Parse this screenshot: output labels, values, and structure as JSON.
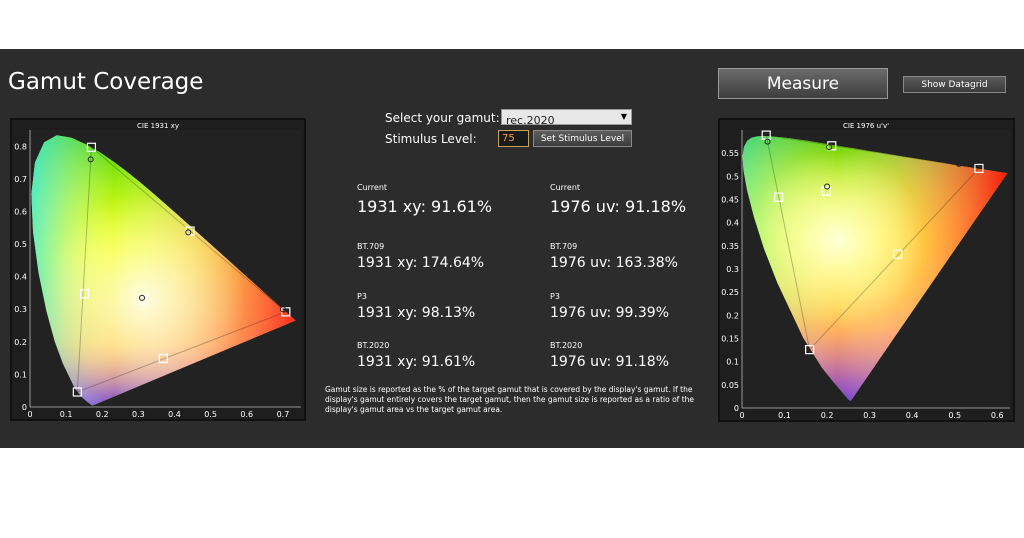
{
  "title": "Gamut Coverage",
  "buttons": {
    "measure": "Measure",
    "show_datagrid": "Show Datagrid",
    "set_stimulus": "Set Stimulus Level"
  },
  "controls": {
    "gamut_label": "Select your gamut:",
    "gamut_value": "rec.2020",
    "stimulus_label": "Stimulus Level:",
    "stimulus_value": "75"
  },
  "stats": [
    {
      "label": "Current",
      "xy": "1931 xy: 91.61%",
      "uv": "1976 uv: 91.18%"
    },
    {
      "label": "BT.709",
      "xy": "1931 xy: 174.64%",
      "uv": "1976 uv: 163.38%"
    },
    {
      "label": "P3",
      "xy": "1931 xy: 98.13%",
      "uv": "1976 uv: 99.39%"
    },
    {
      "label": "BT.2020",
      "xy": "1931 xy: 91.61%",
      "uv": "1976 uv: 91.18%"
    }
  ],
  "note": "Gamut size is reported as the % of the target gamut that is covered by the display's gamut. If the display's gamut entirely covers the target gamut, then the gamut size is reported as a ratio of the display's gamut area vs the target gamut area.",
  "chart_data": [
    {
      "type": "scatter",
      "title": "CIE 1931 xy",
      "xlim": [
        0,
        0.75
      ],
      "ylim": [
        0,
        0.85
      ],
      "x_ticks": [
        0,
        0.1,
        0.2,
        0.3,
        0.4,
        0.5,
        0.6,
        0.7
      ],
      "y_ticks": [
        0,
        0.1,
        0.2,
        0.3,
        0.4,
        0.5,
        0.6,
        0.7,
        0.8
      ],
      "target_points": [
        {
          "x": 0.17,
          "y": 0.797
        },
        {
          "x": 0.708,
          "y": 0.292
        },
        {
          "x": 0.131,
          "y": 0.046
        },
        {
          "x": 0.443,
          "y": 0.54
        },
        {
          "x": 0.369,
          "y": 0.149
        },
        {
          "x": 0.151,
          "y": 0.347
        },
        {
          "x": 0.3127,
          "y": 0.329
        }
      ],
      "measured_points": [
        {
          "x": 0.168,
          "y": 0.76
        },
        {
          "x": 0.7,
          "y": 0.3
        },
        {
          "x": 0.438,
          "y": 0.536
        },
        {
          "x": 0.31,
          "y": 0.335
        }
      ]
    },
    {
      "type": "scatter",
      "title": "CIE 1976 u'v'",
      "xlim": [
        0,
        0.63
      ],
      "ylim": [
        0,
        0.6
      ],
      "x_ticks": [
        0,
        0.1,
        0.2,
        0.3,
        0.4,
        0.5,
        0.6
      ],
      "y_ticks": [
        0,
        0.05,
        0.1,
        0.15,
        0.2,
        0.25,
        0.3,
        0.35,
        0.4,
        0.45,
        0.5,
        0.55
      ],
      "target_points": [
        {
          "x": 0.057,
          "y": 0.589
        },
        {
          "x": 0.557,
          "y": 0.517
        },
        {
          "x": 0.159,
          "y": 0.126
        },
        {
          "x": 0.211,
          "y": 0.566
        },
        {
          "x": 0.366,
          "y": 0.332
        },
        {
          "x": 0.086,
          "y": 0.455
        },
        {
          "x": 0.198,
          "y": 0.468
        }
      ],
      "measured_points": [
        {
          "x": 0.06,
          "y": 0.575
        },
        {
          "x": 0.51,
          "y": 0.527
        },
        {
          "x": 0.205,
          "y": 0.563
        },
        {
          "x": 0.2,
          "y": 0.478
        }
      ]
    }
  ]
}
